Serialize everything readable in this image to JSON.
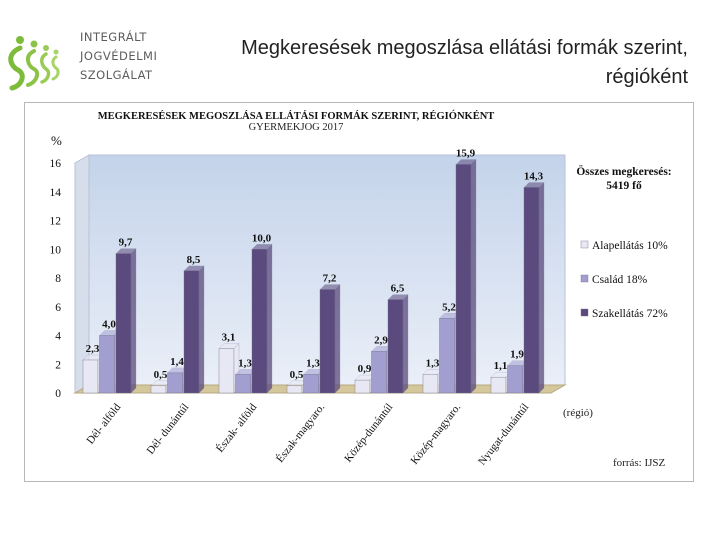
{
  "header": {
    "logo_lines": [
      "INTEGRÁLT",
      "JOGVÉDELMI",
      "SZOLGÁLAT"
    ],
    "slide_title_line1": "Megkeresések megoszlása ellátási formák szerint,",
    "slide_title_line2": "régióként"
  },
  "colors": {
    "alapellatas": "#e8e8f4",
    "csalad": "#a29fd0",
    "szakellatas": "#5b4a7d",
    "plot_bg_top": "#c4d3ea",
    "plot_bg_bottom": "#eaeff8",
    "floor": "#d4c79c"
  },
  "chart_data": {
    "type": "bar",
    "title": "MEGKERESÉSEK  MEGOSZLÁSA  ELLÁTÁSI  FORMÁK SZERINT,  RÉGIÓNKÉNT",
    "subtitle": "GYERMEKJOG 2017",
    "ylabel": "%",
    "xlabel": "(régió)",
    "ylim": [
      0,
      16
    ],
    "yticks": [
      0,
      2,
      4,
      6,
      8,
      10,
      12,
      14,
      16
    ],
    "grid": false,
    "legend_position": "right",
    "categories": [
      "Dél- alföld",
      "Dél- dunántúl",
      "Észak- alföld",
      "Észak-magyaro.",
      "Közép-dunántúl",
      "Közép-magyaro.",
      "Nyugat-dunántúl"
    ],
    "series": [
      {
        "name": "Alapellátás 10%",
        "values": [
          2.3,
          0.5,
          3.1,
          0.5,
          0.9,
          1.3,
          1.1
        ]
      },
      {
        "name": "Család 18%",
        "values": [
          4.0,
          1.4,
          1.3,
          1.3,
          2.9,
          5.2,
          1.9
        ]
      },
      {
        "name": "Szakellátás 72%",
        "values": [
          9.7,
          8.5,
          10.0,
          7.2,
          6.5,
          15.9,
          14.3
        ]
      }
    ],
    "value_labels": [
      [
        "2,3",
        "0,5",
        "3,1",
        "0,5",
        "0,9",
        "1,3",
        "1,1"
      ],
      [
        "4,0",
        "1,4",
        "1,3",
        "1,3",
        "2,9",
        "5,2",
        "1,9"
      ],
      [
        "9,7",
        "8,5",
        "10,0",
        "7,2",
        "6,5",
        "15,9",
        "14,3"
      ]
    ],
    "annotation_line1": "Összes megkeresés:",
    "annotation_line2": "5419 fő",
    "source": "forrás: IJSZ"
  }
}
